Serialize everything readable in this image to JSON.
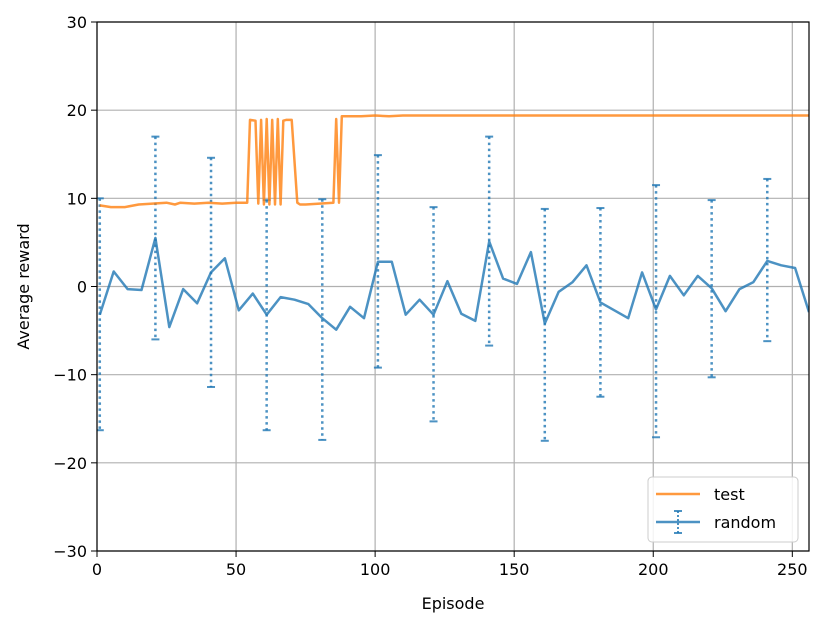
{
  "chart_data": {
    "type": "line",
    "xlabel": "Episode",
    "ylabel": "Average reward",
    "xlim": [
      0,
      256
    ],
    "ylim": [
      -30,
      30
    ],
    "xticks": [
      0,
      50,
      100,
      150,
      200,
      250
    ],
    "yticks": [
      -30,
      -20,
      -10,
      0,
      10,
      20,
      30
    ],
    "xtick_labels": [
      "0",
      "50",
      "100",
      "150",
      "200",
      "250"
    ],
    "ytick_labels": [
      "−30",
      "−20",
      "−10",
      "0",
      "10",
      "20",
      "30"
    ],
    "grid": true,
    "legend_position": "lower-right",
    "series": [
      {
        "name": "test",
        "color": "#ff7f0e",
        "x": [
          1,
          5,
          10,
          15,
          20,
          25,
          28,
          30,
          35,
          40,
          45,
          50,
          54,
          55,
          57,
          58,
          59,
          60,
          61,
          62,
          63,
          64,
          65,
          66,
          67,
          68,
          70,
          72,
          73,
          75,
          80,
          85,
          86,
          87,
          88,
          90,
          95,
          100,
          105,
          110,
          120,
          150,
          180,
          200,
          230,
          256
        ],
        "values": [
          9.2,
          9.0,
          9.0,
          9.3,
          9.4,
          9.5,
          9.3,
          9.5,
          9.4,
          9.5,
          9.4,
          9.5,
          9.5,
          18.9,
          18.8,
          9.4,
          18.9,
          9.3,
          19.0,
          9.3,
          18.9,
          9.3,
          19.0,
          9.3,
          18.8,
          18.9,
          18.9,
          9.5,
          9.3,
          9.3,
          9.4,
          9.5,
          19.0,
          9.5,
          19.3,
          19.3,
          19.3,
          19.4,
          19.3,
          19.4,
          19.4,
          19.4,
          19.4,
          19.4,
          19.4,
          19.4
        ]
      },
      {
        "name": "random",
        "color": "#1f77b4",
        "error_every": 20,
        "x": [
          1,
          6,
          11,
          16,
          21,
          26,
          31,
          36,
          41,
          46,
          51,
          56,
          61,
          66,
          71,
          76,
          81,
          86,
          91,
          96,
          101,
          106,
          111,
          116,
          121,
          126,
          131,
          136,
          141,
          146,
          151,
          156,
          161,
          166,
          171,
          176,
          181,
          186,
          191,
          196,
          201,
          206,
          211,
          216,
          221,
          226,
          231,
          236,
          241,
          246,
          251,
          256
        ],
        "values": [
          -3.2,
          1.7,
          -0.3,
          -0.4,
          5.5,
          -4.6,
          -0.3,
          -1.9,
          1.6,
          3.2,
          -2.7,
          -0.8,
          -3.2,
          -1.2,
          -1.5,
          -2.0,
          -3.6,
          -4.9,
          -2.3,
          -3.6,
          2.8,
          2.8,
          -3.2,
          -1.5,
          -3.2,
          0.6,
          -3.1,
          -3.9,
          5.1,
          0.9,
          0.3,
          3.9,
          -4.2,
          -0.6,
          0.5,
          2.4,
          -1.8,
          -2.7,
          -3.6,
          1.6,
          -2.6,
          1.2,
          -1.0,
          1.2,
          -0.2,
          -2.8,
          -0.3,
          0.5,
          2.9,
          2.4,
          2.1,
          -2.9
        ],
        "errorbars": [
          {
            "x": 1,
            "low": -16.3,
            "high": 10.0
          },
          {
            "x": 21,
            "low": -6.0,
            "high": 17.0
          },
          {
            "x": 41,
            "low": -11.4,
            "high": 14.6
          },
          {
            "x": 61,
            "low": -16.3,
            "high": 9.8
          },
          {
            "x": 81,
            "low": -17.4,
            "high": 9.9
          },
          {
            "x": 101,
            "low": -9.2,
            "high": 14.9
          },
          {
            "x": 121,
            "low": -15.3,
            "high": 9.0
          },
          {
            "x": 141,
            "low": -6.7,
            "high": 17.0
          },
          {
            "x": 161,
            "low": -17.5,
            "high": 8.8
          },
          {
            "x": 181,
            "low": -12.5,
            "high": 8.9
          },
          {
            "x": 201,
            "low": -17.1,
            "high": 11.5
          },
          {
            "x": 221,
            "low": -10.3,
            "high": 9.8
          },
          {
            "x": 241,
            "low": -6.2,
            "high": 12.2
          }
        ]
      }
    ]
  }
}
